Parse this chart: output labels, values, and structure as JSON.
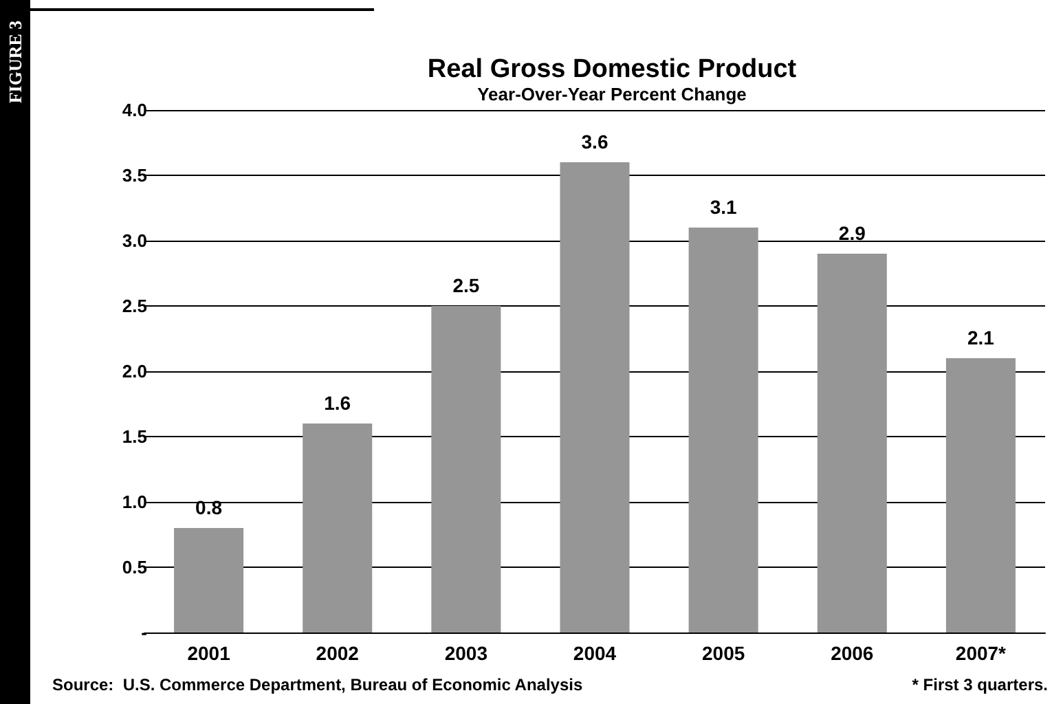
{
  "chart_data": {
    "type": "bar",
    "title": "Real Gross Domestic Product",
    "subtitle": "Year-Over-Year Percent Change",
    "categories": [
      "2001",
      "2002",
      "2003",
      "2004",
      "2005",
      "2006",
      "2007*"
    ],
    "values": [
      0.8,
      1.6,
      2.5,
      3.6,
      3.1,
      2.9,
      2.1
    ],
    "color": "#969696",
    "ylim": [
      0,
      4
    ],
    "yticks": [
      {
        "value": 0,
        "label": "-"
      },
      0.5,
      {
        "value": 1,
        "label": "1.0"
      },
      1.5,
      {
        "value": 2,
        "label": "2.0"
      },
      2.5,
      {
        "value": 3,
        "label": "3.0"
      },
      3.5,
      {
        "value": 4,
        "label": "4.0"
      }
    ],
    "grid": "y",
    "data_labels": true,
    "annotations": [
      "FIGURE 3",
      "Source:  U.S. Commerce Department, Bureau of Economic Analysis",
      "* First 3 quarters."
    ]
  }
}
